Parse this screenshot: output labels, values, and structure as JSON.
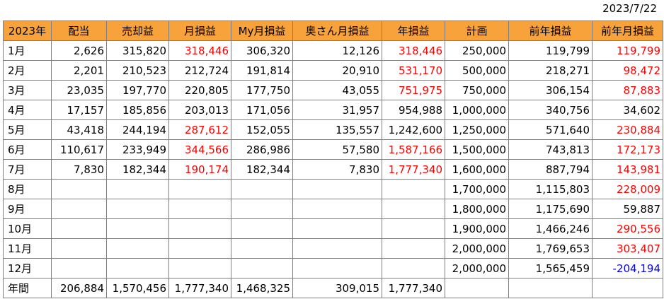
{
  "date": "2023/7/22",
  "colors": {
    "header_bg": "#f7a23a",
    "negative_flag": "#ff0000",
    "minus": "#0000ff",
    "grid": "#7f7f7f"
  },
  "headers": [
    "2023年",
    "配当",
    "売却益",
    "月損益",
    "My月損益",
    "奥さん月損益",
    "年損益",
    "計画",
    "前年損益",
    "前年月損益"
  ],
  "rows": [
    {
      "label": "1月",
      "cells": [
        "2,626",
        "315,820",
        "318,446",
        "306,320",
        "12,126",
        "318,446",
        "250,000",
        "119,799",
        "119,799"
      ],
      "colors": [
        "",
        "",
        "red",
        "",
        "",
        "red",
        "",
        "",
        "red"
      ]
    },
    {
      "label": "2月",
      "cells": [
        "2,201",
        "210,523",
        "212,724",
        "191,814",
        "20,910",
        "531,170",
        "500,000",
        "218,271",
        "98,472"
      ],
      "colors": [
        "",
        "",
        "",
        "",
        "",
        "red",
        "",
        "",
        "red"
      ]
    },
    {
      "label": "3月",
      "cells": [
        "23,035",
        "197,770",
        "220,805",
        "177,750",
        "43,055",
        "751,975",
        "750,000",
        "306,154",
        "87,883"
      ],
      "colors": [
        "",
        "",
        "",
        "",
        "",
        "red",
        "",
        "",
        "red"
      ]
    },
    {
      "label": "4月",
      "cells": [
        "17,157",
        "185,856",
        "203,013",
        "171,056",
        "31,957",
        "954,988",
        "1,000,000",
        "340,756",
        "34,602"
      ],
      "colors": [
        "",
        "",
        "",
        "",
        "",
        "",
        "",
        "",
        ""
      ]
    },
    {
      "label": "5月",
      "cells": [
        "43,418",
        "244,194",
        "287,612",
        "152,055",
        "135,557",
        "1,242,600",
        "1,250,000",
        "571,640",
        "230,884"
      ],
      "colors": [
        "",
        "",
        "red",
        "",
        "",
        "",
        "",
        "",
        "red"
      ]
    },
    {
      "label": "6月",
      "cells": [
        "110,617",
        "233,949",
        "344,566",
        "286,986",
        "57,580",
        "1,587,166",
        "1,500,000",
        "743,813",
        "172,173"
      ],
      "colors": [
        "",
        "",
        "red",
        "",
        "",
        "red",
        "",
        "",
        "red"
      ]
    },
    {
      "label": "7月",
      "cells": [
        "7,830",
        "182,344",
        "190,174",
        "182,344",
        "7,830",
        "1,777,340",
        "1,600,000",
        "887,794",
        "143,981"
      ],
      "colors": [
        "",
        "",
        "red",
        "",
        "",
        "red",
        "",
        "",
        "red"
      ]
    },
    {
      "label": "8月",
      "cells": [
        "",
        "",
        "",
        "",
        "",
        "",
        "1,700,000",
        "1,115,803",
        "228,009"
      ],
      "colors": [
        "",
        "",
        "",
        "",
        "",
        "",
        "",
        "",
        "red"
      ]
    },
    {
      "label": "9月",
      "cells": [
        "",
        "",
        "",
        "",
        "",
        "",
        "1,800,000",
        "1,175,690",
        "59,887"
      ],
      "colors": [
        "",
        "",
        "",
        "",
        "",
        "",
        "",
        "",
        ""
      ]
    },
    {
      "label": "10月",
      "cells": [
        "",
        "",
        "",
        "",
        "",
        "",
        "1,900,000",
        "1,466,246",
        "290,556"
      ],
      "colors": [
        "",
        "",
        "",
        "",
        "",
        "",
        "",
        "",
        "red"
      ]
    },
    {
      "label": "11月",
      "cells": [
        "",
        "",
        "",
        "",
        "",
        "",
        "2,000,000",
        "1,769,653",
        "303,407"
      ],
      "colors": [
        "",
        "",
        "",
        "",
        "",
        "",
        "",
        "",
        "red"
      ]
    },
    {
      "label": "12月",
      "cells": [
        "",
        "",
        "",
        "",
        "",
        "",
        "2,000,000",
        "1,565,459",
        "-204,194"
      ],
      "colors": [
        "",
        "",
        "",
        "",
        "",
        "",
        "",
        "",
        "blue"
      ]
    },
    {
      "label": "年間",
      "cells": [
        "206,884",
        "1,570,456",
        "1,777,340",
        "1,468,325",
        "309,015",
        "1,777,340",
        "",
        "",
        ""
      ],
      "colors": [
        "",
        "",
        "",
        "",
        "",
        "",
        "",
        "",
        ""
      ]
    }
  ]
}
